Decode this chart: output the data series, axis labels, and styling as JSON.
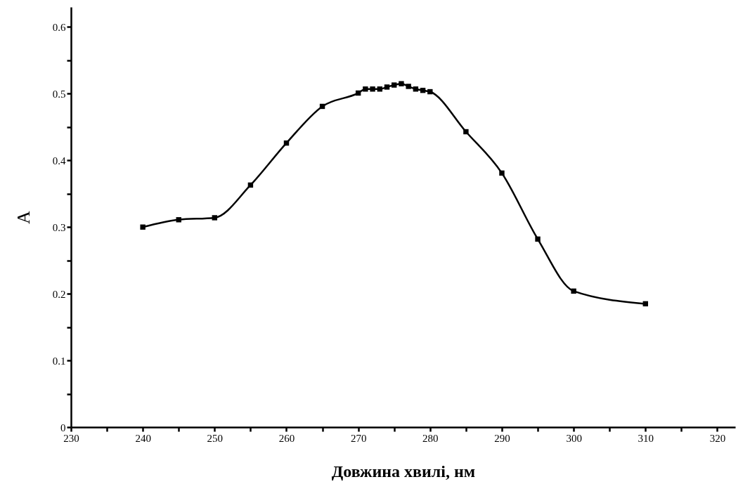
{
  "chart_data": {
    "type": "line",
    "xlabel": "Довжина хвилі, нм",
    "ylabel": "A",
    "x": [
      240,
      245,
      250,
      255,
      260,
      265,
      270,
      271,
      272,
      273,
      274,
      275,
      276,
      277,
      278,
      279,
      280,
      285,
      290,
      295,
      300,
      310
    ],
    "series": [
      {
        "color": "#000000",
        "values": [
          0.3,
          0.311,
          0.314,
          0.363,
          0.426,
          0.481,
          0.501,
          0.507,
          0.507,
          0.507,
          0.51,
          0.513,
          0.515,
          0.511,
          0.507,
          0.505,
          0.503,
          0.443,
          0.381,
          0.282,
          0.204,
          0.185
        ]
      }
    ],
    "xlim": [
      230,
      322.5
    ],
    "xticks": [
      230,
      {
        "value": 235,
        "label": null
      },
      240,
      {
        "value": 245,
        "label": null
      },
      250,
      {
        "value": 255,
        "label": null
      },
      260,
      {
        "value": 265,
        "label": null
      },
      270,
      {
        "value": 275,
        "label": null
      },
      280,
      {
        "value": 285,
        "label": null
      },
      290,
      {
        "value": 295,
        "label": null
      },
      300,
      {
        "value": 305,
        "label": null
      },
      310,
      {
        "value": 315,
        "label": null
      },
      320
    ],
    "ylim": [
      0,
      0.63
    ],
    "yticks": [
      0,
      {
        "value": 0.05,
        "label": null
      },
      0.1,
      {
        "value": 0.15,
        "label": null
      },
      0.2,
      {
        "value": 0.25,
        "label": null
      },
      0.3,
      {
        "value": 0.35,
        "label": null
      },
      0.4,
      {
        "value": 0.45,
        "label": null
      },
      0.5,
      {
        "value": 0.55,
        "label": null
      },
      0.6
    ],
    "grid": false,
    "legend": false,
    "marker": "square",
    "line_style": "solid"
  }
}
